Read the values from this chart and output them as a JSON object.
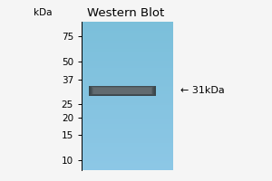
{
  "title": "Western Blot",
  "background_color": "#f5f5f5",
  "gel_color": "#7bbfda",
  "band_color": "#2a2a2a",
  "ladder_marks": [
    75,
    50,
    37,
    25,
    20,
    15,
    10
  ],
  "band_kda": 31,
  "band_label": "← 31kDa",
  "ylabel_text": "kDa",
  "y_min": 8.5,
  "y_max": 95,
  "title_fontsize": 9.5,
  "tick_fontsize": 7.5,
  "label_fontsize": 7.5,
  "band_annotation_fontsize": 8
}
